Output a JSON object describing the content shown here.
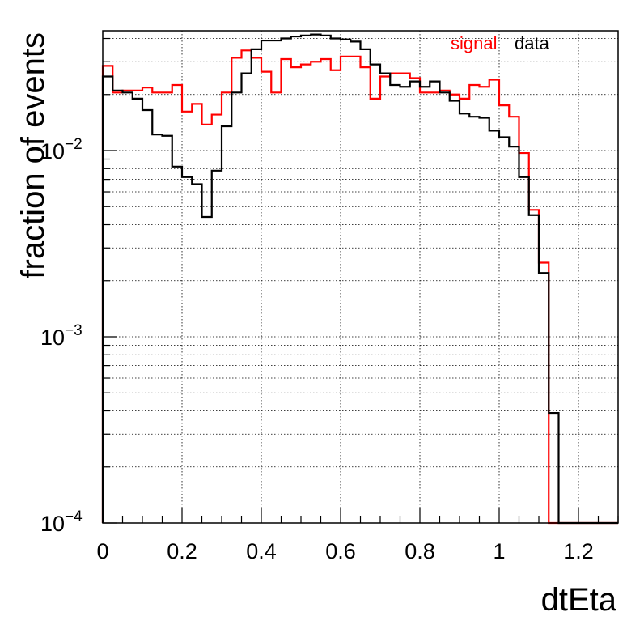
{
  "chart_data": {
    "type": "line",
    "style": "step-histogram",
    "xlabel": "dtEta",
    "ylabel": "fraction of events",
    "xlim": [
      0,
      1.3
    ],
    "ylim": [
      0.0001,
      0.044
    ],
    "yscale": "log",
    "grid": true,
    "legend_position": "top-right",
    "bin_width": 0.025,
    "x_ticks": [
      "0",
      "0.2",
      "0.4",
      "0.6",
      "0.8",
      "1",
      "1.2"
    ],
    "y_ticks": [
      {
        "base": "10",
        "exp": "−2",
        "value": 0.01
      },
      {
        "base": "10",
        "exp": "−3",
        "value": 0.001
      },
      {
        "base": "10",
        "exp": "−4",
        "value": 0.0001
      }
    ],
    "series": [
      {
        "name": "signal",
        "color": "#ff0000",
        "values": [
          0.0285,
          0.0205,
          0.021,
          0.021,
          0.0218,
          0.0205,
          0.0205,
          0.0225,
          0.0162,
          0.0178,
          0.0138,
          0.0156,
          0.0205,
          0.0315,
          0.0345,
          0.0315,
          0.0265,
          0.0205,
          0.031,
          0.028,
          0.029,
          0.03,
          0.031,
          0.027,
          0.032,
          0.032,
          0.028,
          0.019,
          0.025,
          0.026,
          0.026,
          0.0245,
          0.0205,
          0.0205,
          0.021,
          0.02,
          0.019,
          0.0225,
          0.022,
          0.024,
          0.0175,
          0.0152,
          0.0097,
          0.0048,
          0.0025,
          0.0001,
          0.0001,
          0.0001,
          0.0001,
          0.0001,
          0.0001,
          0.0001
        ]
      },
      {
        "name": "data",
        "color": "#000000",
        "values": [
          0.025,
          0.021,
          0.0205,
          0.019,
          0.0165,
          0.0122,
          0.012,
          0.0082,
          0.0072,
          0.0066,
          0.0044,
          0.0078,
          0.0135,
          0.0205,
          0.026,
          0.035,
          0.039,
          0.039,
          0.04,
          0.041,
          0.0415,
          0.042,
          0.0415,
          0.04,
          0.0395,
          0.0385,
          0.035,
          0.029,
          0.026,
          0.0225,
          0.022,
          0.0235,
          0.022,
          0.0235,
          0.0205,
          0.0185,
          0.0158,
          0.0152,
          0.015,
          0.0128,
          0.0118,
          0.0105,
          0.0072,
          0.0045,
          0.0022,
          0.00039,
          0.0001,
          0.0001,
          0.0001,
          0.0001,
          0.0001,
          0.0001
        ]
      }
    ]
  }
}
